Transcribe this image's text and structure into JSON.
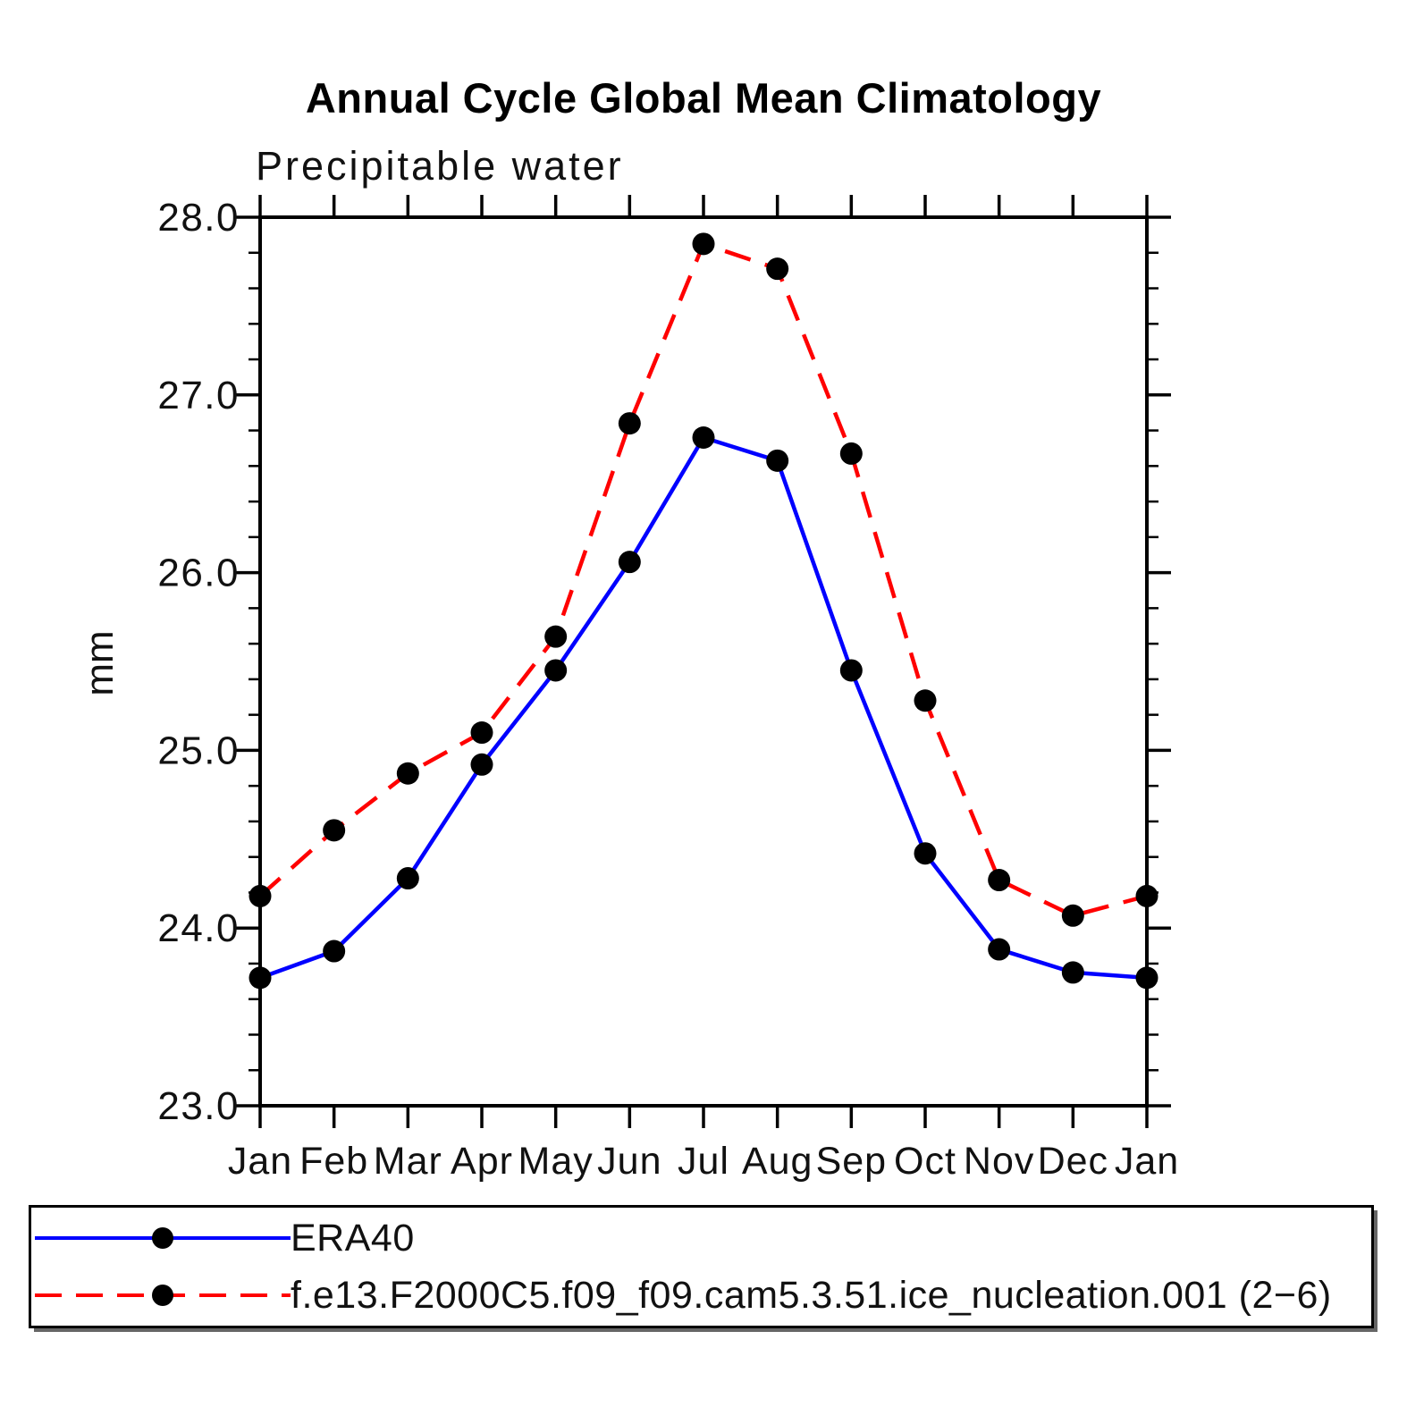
{
  "chart_data": {
    "type": "line",
    "title": "Annual Cycle Global Mean Climatology",
    "subtitle": "Precipitable water",
    "xlabel": "",
    "ylabel": "mm",
    "categories": [
      "Jan",
      "Feb",
      "Mar",
      "Apr",
      "May",
      "Jun",
      "Jul",
      "Aug",
      "Sep",
      "Oct",
      "Nov",
      "Dec",
      "Jan"
    ],
    "ylim": [
      23.0,
      28.0
    ],
    "ytick_labels": [
      "23.0",
      "24.0",
      "25.0",
      "26.0",
      "27.0",
      "28.0"
    ],
    "ytick_values": [
      23.0,
      24.0,
      25.0,
      26.0,
      27.0,
      28.0
    ],
    "minor_tick_step": 0.2,
    "grid": false,
    "legend_position": "bottom",
    "marker": "filled-circle",
    "marker_color": "#000000",
    "series": [
      {
        "name": "ERA40",
        "color": "#0000ff",
        "style": "solid",
        "values": [
          23.72,
          23.87,
          24.28,
          24.92,
          25.45,
          26.06,
          26.76,
          26.63,
          25.45,
          24.42,
          23.88,
          23.75,
          23.72
        ]
      },
      {
        "name": "f.e13.F2000C5.f09_f09.cam5.3.51.ice_nucleation.001 (2−6)",
        "color": "#ff0000",
        "style": "dashed",
        "values": [
          24.18,
          24.55,
          24.87,
          25.1,
          25.64,
          26.84,
          27.85,
          27.71,
          26.67,
          25.28,
          24.27,
          24.07,
          24.18
        ]
      }
    ]
  },
  "colors": {
    "background": "#ffffff",
    "axis": "#000000",
    "text": "#111111",
    "era40_line": "#0000ff",
    "model_line": "#ff0000",
    "marker": "#000000"
  }
}
